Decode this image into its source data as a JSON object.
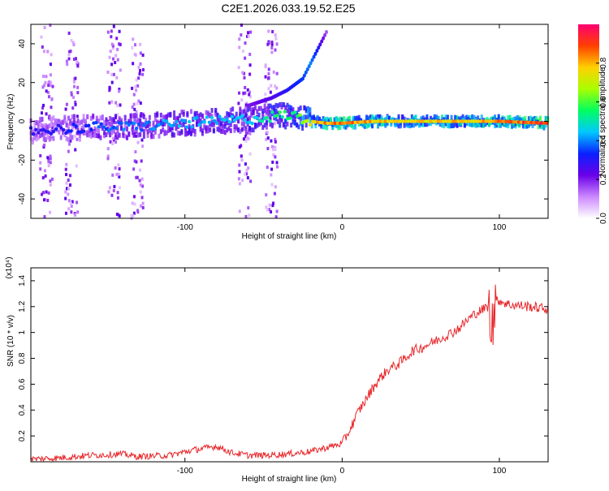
{
  "page_title": "C2E1.2026.033.19.52.E25",
  "colors": {
    "snr_line": "#e8262a",
    "colormap": [
      "#ffffff",
      "#cc88ff",
      "#6a00e8",
      "#0a20ff",
      "#00c8ff",
      "#00ff60",
      "#a8ff00",
      "#ffd000",
      "#ff4000",
      "#ff0070"
    ]
  },
  "chart_data": [
    {
      "id": "spectrogram",
      "type": "heatmap",
      "title": "C2E1.2026.033.19.52.E25",
      "xlabel": "Height of straight line (km)",
      "ylabel": "Frequency (Hz)",
      "xlim": [
        -198,
        131
      ],
      "ylim": [
        -50,
        50
      ],
      "x_ticks": [
        -100,
        0,
        100
      ],
      "x_tick_labels": [
        "-100",
        "0",
        "100"
      ],
      "y_ticks": [
        -40,
        -20,
        0,
        20,
        40
      ],
      "y_tick_labels": [
        "-40",
        "-20",
        "0",
        "20",
        "40"
      ],
      "colorbar": {
        "label": "Normalized spectral amplitude",
        "range": [
          0,
          1
        ],
        "ticks": [
          0.0,
          0.2,
          0.4,
          0.6,
          0.8
        ],
        "tick_labels": [
          "0.0",
          "0.2",
          "0.4",
          "0.6",
          "0.8"
        ]
      },
      "ridge": {
        "description": "frequency of the strongest signal vs height",
        "x": [
          -198,
          -180,
          -160,
          -140,
          -120,
          -100,
          -80,
          -60,
          -50,
          -40,
          -30,
          -20,
          -10,
          0,
          20,
          50,
          80,
          100,
          131
        ],
        "y": [
          -5,
          -4,
          -3,
          -3,
          -2,
          -1,
          0,
          1,
          2,
          3,
          3,
          0,
          -1,
          -1,
          0,
          0,
          0,
          0,
          -1
        ],
        "amplitude": [
          0.3,
          0.3,
          0.35,
          0.4,
          0.4,
          0.45,
          0.45,
          0.45,
          0.5,
          0.55,
          0.55,
          0.75,
          0.85,
          0.9,
          0.8,
          0.78,
          0.8,
          0.85,
          0.95
        ]
      },
      "upper_branch": {
        "x": [
          -60,
          -45,
          -35,
          -25,
          -20,
          -15,
          -10
        ],
        "y": [
          8,
          12,
          16,
          22,
          30,
          38,
          46
        ],
        "amplitude": [
          0.2,
          0.25,
          0.3,
          0.35,
          0.4,
          0.3,
          0.15
        ]
      },
      "noise_columns_x": [
        -188,
        -172,
        -145,
        -130,
        -62,
        -45
      ]
    },
    {
      "id": "snr",
      "type": "line",
      "xlabel": "Height of straight line (km)",
      "ylabel": "SNR (10 * v/v)",
      "y_multiplier_label": "(x10⁴)",
      "xlim": [
        -198,
        131
      ],
      "ylim": [
        0,
        1.5
      ],
      "x_ticks": [
        -100,
        0,
        100
      ],
      "x_tick_labels": [
        "-100",
        "0",
        "100"
      ],
      "y_ticks": [
        0.2,
        0.4,
        0.6,
        0.8,
        1.0,
        1.2,
        1.4
      ],
      "y_tick_labels": [
        "0.2",
        "0.4",
        "0.6",
        "0.8",
        "1",
        "1.2",
        "1.4"
      ],
      "series": [
        {
          "name": "SNR",
          "x": [
            -198,
            -180,
            -160,
            -140,
            -130,
            -110,
            -95,
            -80,
            -70,
            -60,
            -50,
            -35,
            -20,
            -10,
            0,
            5,
            10,
            15,
            20,
            25,
            30,
            35,
            40,
            45,
            50,
            55,
            60,
            65,
            70,
            75,
            80,
            85,
            90,
            95,
            100,
            105,
            110,
            120,
            131
          ],
          "y": [
            0.02,
            0.03,
            0.05,
            0.06,
            0.04,
            0.05,
            0.09,
            0.12,
            0.07,
            0.05,
            0.05,
            0.06,
            0.08,
            0.11,
            0.14,
            0.25,
            0.38,
            0.48,
            0.58,
            0.66,
            0.72,
            0.75,
            0.8,
            0.86,
            0.88,
            0.91,
            0.94,
            0.97,
            1.0,
            1.04,
            1.1,
            1.15,
            1.18,
            1.22,
            1.25,
            1.22,
            1.21,
            1.2,
            1.18
          ]
        }
      ]
    }
  ]
}
